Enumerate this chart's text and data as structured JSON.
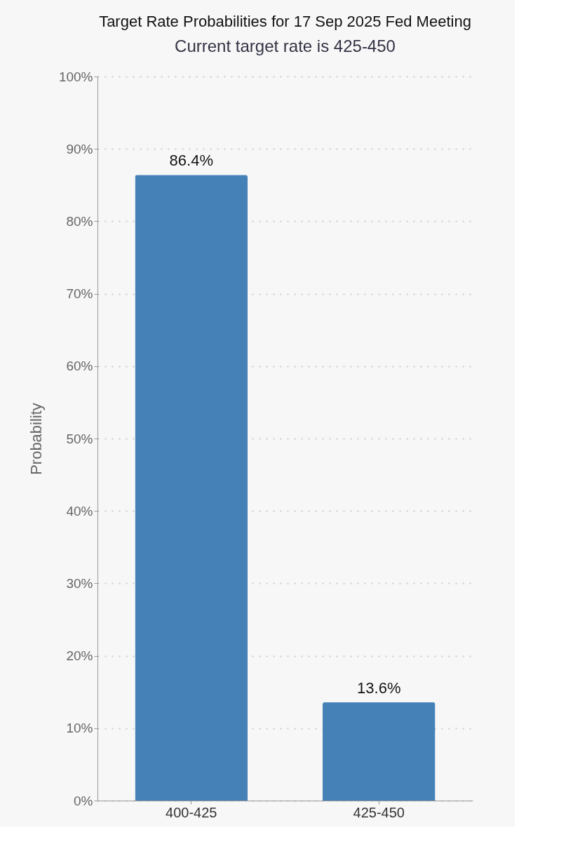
{
  "chart_data": {
    "type": "bar",
    "title": "Target Rate Probabilities for 17 Sep 2025 Fed Meeting",
    "subtitle": "Current target rate is 425-450",
    "ylabel": "Probability",
    "categories": [
      "400-425",
      "425-450"
    ],
    "values": [
      86.4,
      13.6
    ],
    "color": "#4581b6",
    "value_labels": [
      "86.4%",
      "13.6%"
    ],
    "ylim": [
      0,
      100
    ],
    "yticks": [
      {
        "value": 0,
        "label": "0%"
      },
      {
        "value": 10,
        "label": "10%"
      },
      {
        "value": 20,
        "label": "20%"
      },
      {
        "value": 30,
        "label": "30%"
      },
      {
        "value": 40,
        "label": "40%"
      },
      {
        "value": 50,
        "label": "50%"
      },
      {
        "value": 60,
        "label": "60%"
      },
      {
        "value": 70,
        "label": "70%"
      },
      {
        "value": 80,
        "label": "80%"
      },
      {
        "value": 90,
        "label": "90%"
      },
      {
        "value": 100,
        "label": "100%"
      }
    ],
    "grid": "y",
    "line_style": "dotted"
  }
}
